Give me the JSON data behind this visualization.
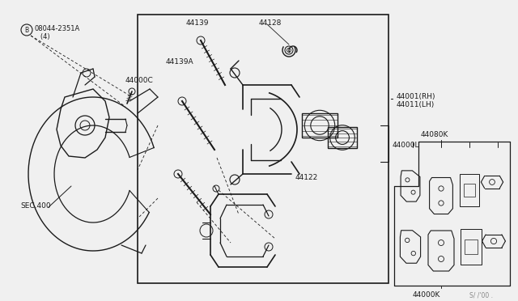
{
  "bg_color": "#f0f0f0",
  "line_color": "#1a1a1a",
  "labels": {
    "B_bolt": "08044-2351A\n   (4)",
    "B_circle": "B",
    "44000C": "44000C",
    "SEC400": "SEC.400",
    "44139": "44139",
    "44128": "44128",
    "44139A": "44139A",
    "44122": "44122",
    "44000L": "44000L",
    "44001RH": "44001(RH)\n44011(LH)",
    "44080K": "44080K",
    "44000K": "44000K",
    "watermark": "S/ /'00 ."
  },
  "figsize": [
    6.4,
    3.72
  ],
  "dpi": 100
}
